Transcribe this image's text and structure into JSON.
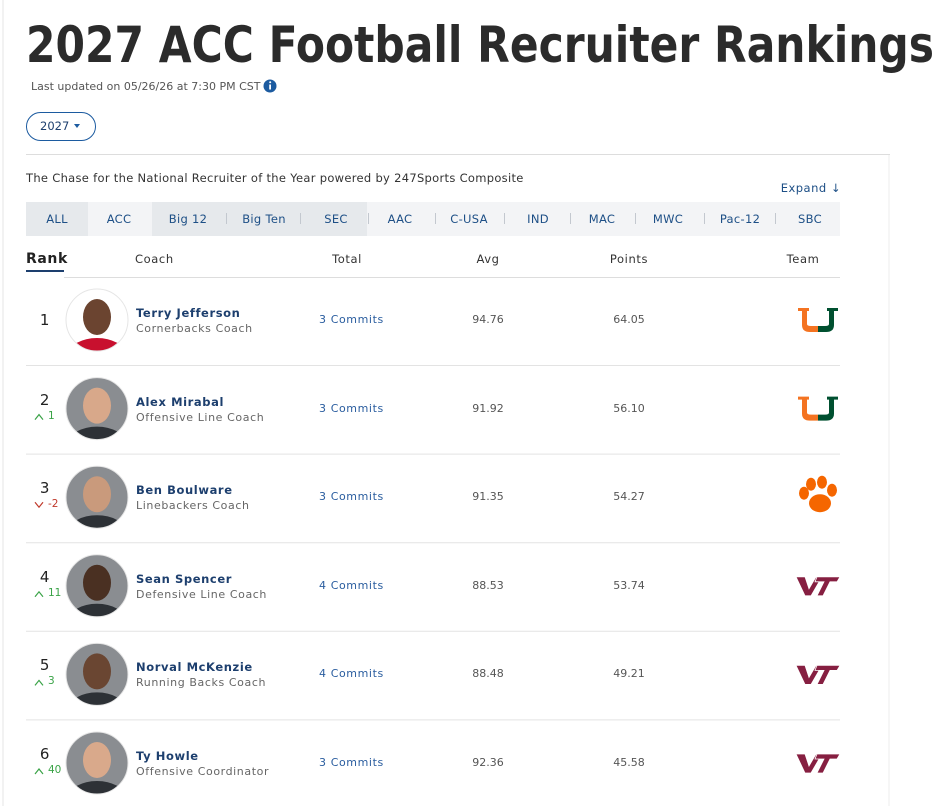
{
  "header": {
    "title": "2027 ACC Football Recruiter Rankings",
    "updated": "Last updated on 05/26/26 at 7:30 PM CST",
    "year": "2027"
  },
  "subtitle": "The Chase for the National Recruiter of the Year powered by 247Sports Composite",
  "expand": "Expand ↓",
  "tabs": [
    "ALL",
    "ACC",
    "Big 12",
    "Big Ten",
    "SEC",
    "AAC",
    "C-USA",
    "IND",
    "MAC",
    "MWC",
    "Pac-12",
    "SBC"
  ],
  "table": {
    "columns": [
      "Rank",
      "Coach",
      "Total",
      "Avg",
      "Points",
      "Team"
    ],
    "rows": [
      {
        "rank": "1",
        "name": "Terry Jefferson",
        "role": "Cornerbacks Coach",
        "total": "3 Commits",
        "avg": "94.76",
        "points": "64.05",
        "team": "miami"
      },
      {
        "rank": "2",
        "change": "1",
        "trend": "up",
        "name": "Alex Mirabal",
        "role": "Offensive Line Coach",
        "total": "3 Commits",
        "avg": "91.92",
        "points": "56.10",
        "team": "miami"
      },
      {
        "rank": "3",
        "change": "-2",
        "trend": "down",
        "name": "Ben Boulware",
        "role": "Linebackers Coach",
        "total": "3 Commits",
        "avg": "91.35",
        "points": "54.27",
        "team": "clemson"
      },
      {
        "rank": "4",
        "change": "11",
        "trend": "up",
        "name": "Sean Spencer",
        "role": "Defensive Line Coach",
        "total": "4 Commits",
        "avg": "88.53",
        "points": "53.74",
        "team": "virginia-tech"
      },
      {
        "rank": "5",
        "change": "3",
        "trend": "up",
        "name": "Norval McKenzie",
        "role": "Running Backs Coach",
        "total": "4 Commits",
        "avg": "88.48",
        "points": "49.21",
        "team": "virginia-tech"
      },
      {
        "rank": "6",
        "change": "40",
        "trend": "up",
        "name": "Ty Howle",
        "role": "Offensive Coordinator",
        "total": "3 Commits",
        "avg": "92.36",
        "points": "45.58",
        "team": "virginia-tech"
      }
    ]
  }
}
